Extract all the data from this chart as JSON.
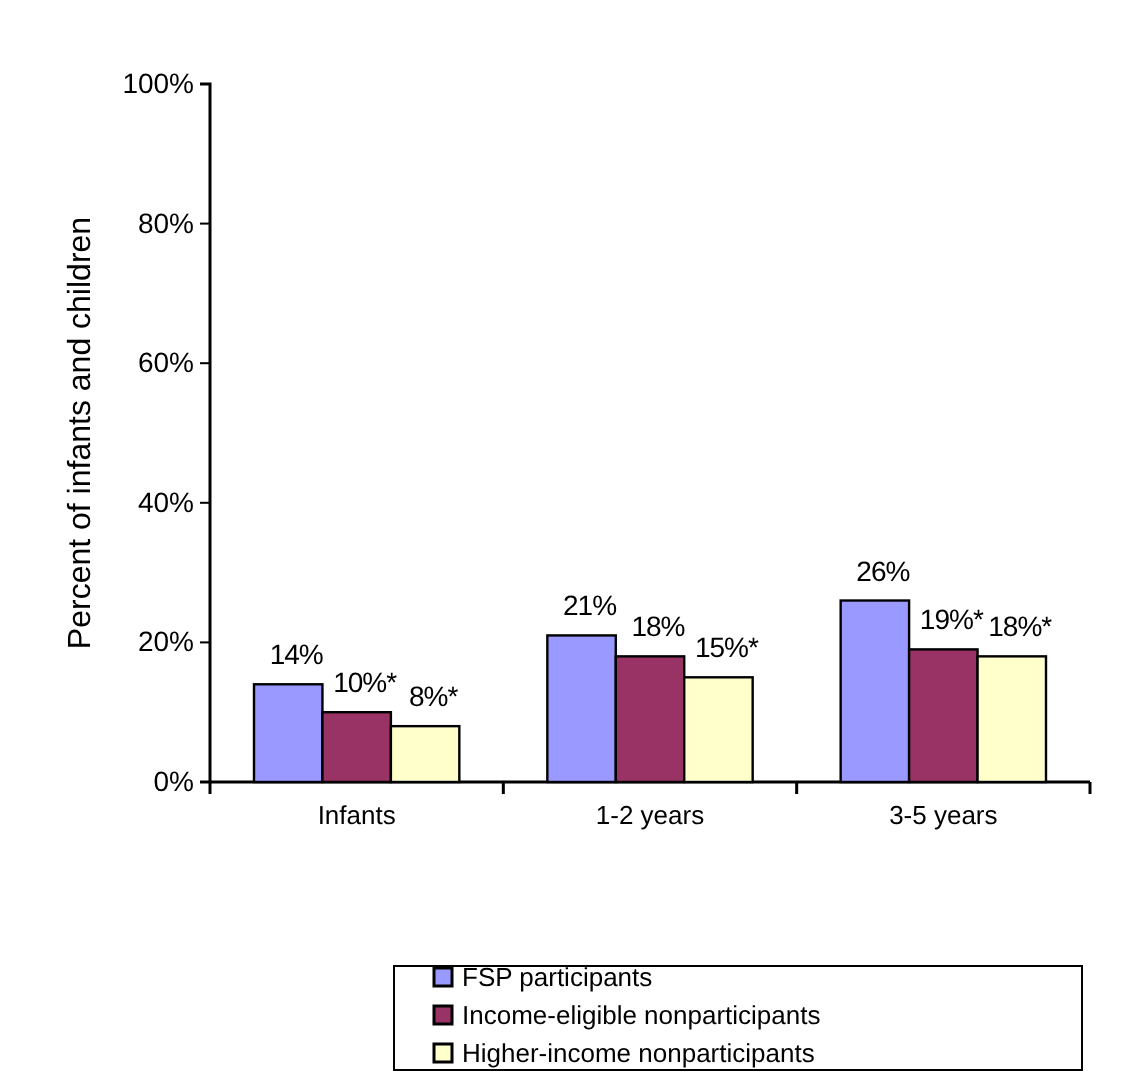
{
  "chart_data": {
    "type": "bar",
    "ylabel": "Percent of infants and children",
    "categories": [
      "Infants",
      "1-2 years",
      "3-5 years"
    ],
    "series": [
      {
        "name": "FSP participants",
        "color": "#9999ff",
        "values": [
          14,
          21,
          26
        ],
        "value_labels": [
          "14%",
          "21%",
          "26%"
        ]
      },
      {
        "name": "Income-eligible nonparticipants",
        "color": "#993366",
        "values": [
          10,
          18,
          19
        ],
        "value_labels": [
          "10%*",
          "18%",
          "19%*"
        ]
      },
      {
        "name": "Higher-income nonparticipants",
        "color": "#ffffcc",
        "values": [
          8,
          15,
          18
        ],
        "value_labels": [
          "8%*",
          "15%*",
          "18%*"
        ]
      }
    ],
    "ylim": [
      0,
      100
    ],
    "yticks": [
      {
        "value": 0,
        "label": "0%"
      },
      {
        "value": 20,
        "label": "20%"
      },
      {
        "value": 40,
        "label": "40%"
      },
      {
        "value": 60,
        "label": "60%"
      },
      {
        "value": 80,
        "label": "80%"
      },
      {
        "value": 100,
        "label": "100%"
      }
    ],
    "grid": false,
    "legend": "bottom"
  }
}
